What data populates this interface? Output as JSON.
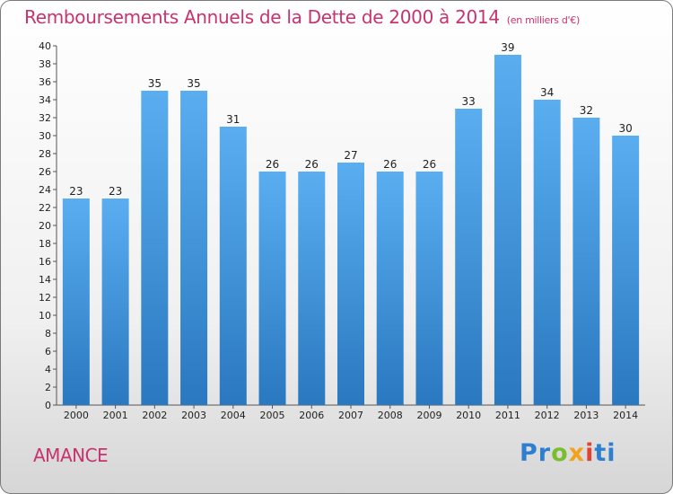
{
  "chart_data": {
    "type": "bar",
    "title": "Remboursements Annuels de la Dette de 2000 à 2014",
    "subtitle": "(en milliers d'€)",
    "categories": [
      "2000",
      "2001",
      "2002",
      "2003",
      "2004",
      "2005",
      "2006",
      "2007",
      "2008",
      "2009",
      "2010",
      "2011",
      "2012",
      "2013",
      "2014"
    ],
    "values": [
      23,
      23,
      35,
      35,
      31,
      26,
      26,
      27,
      26,
      26,
      33,
      39,
      34,
      32,
      30
    ],
    "ylim": [
      0,
      40
    ],
    "ytick_step": 2,
    "grid": false,
    "bar_color": "#4a9fe0"
  },
  "commune": "AMANCE",
  "logo": {
    "text": "Proxiti",
    "colors": [
      "#2e7fd0",
      "#7bbd2f",
      "#f2a21b",
      "#e0442f",
      "#2e7fd0"
    ]
  }
}
